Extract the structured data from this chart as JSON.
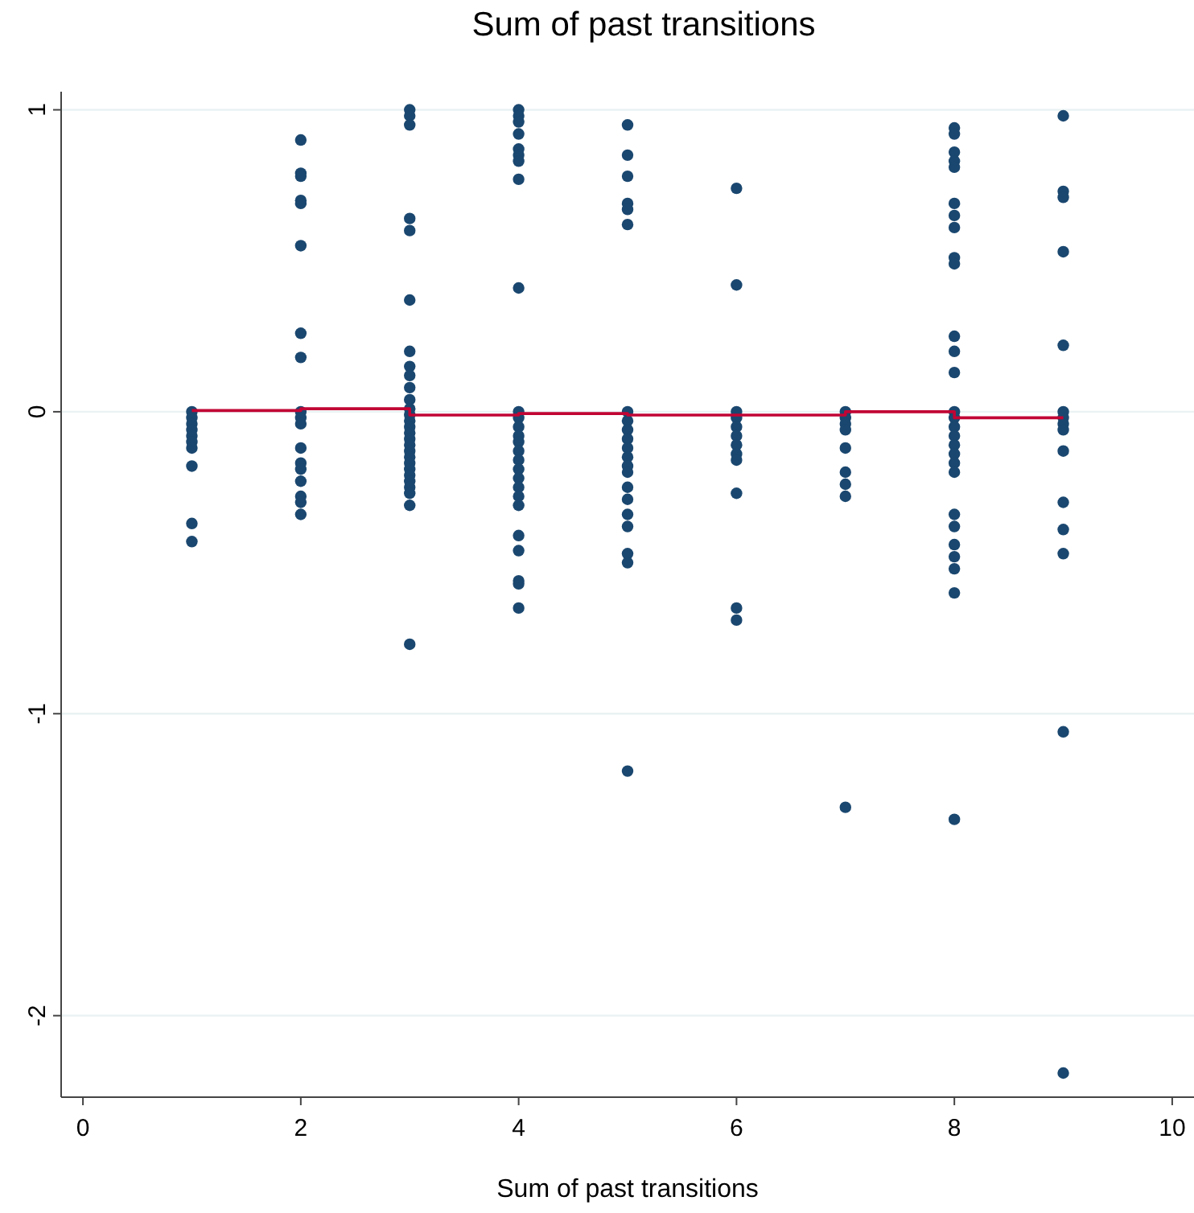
{
  "chart_data": {
    "type": "scatter",
    "title": "Sum of past transitions",
    "xlabel": "Sum of past transitions",
    "xlim": [
      -0.2,
      10.2
    ],
    "xticks": [
      0,
      2,
      4,
      6,
      8,
      10
    ],
    "ylim": [
      -2.27,
      1.06
    ],
    "yticks": [
      -2,
      -1,
      0,
      1
    ],
    "grid": "y",
    "marker": "circle",
    "series": [
      {
        "color": "#1a476f",
        "x": [
          1,
          1,
          1,
          1,
          1,
          1,
          1,
          1,
          1,
          1,
          2,
          2,
          2,
          2,
          2,
          2,
          2,
          2,
          2,
          2,
          2,
          2,
          2,
          2,
          2,
          2,
          2,
          2,
          3,
          3,
          3,
          3,
          3,
          3,
          3,
          3,
          3,
          3,
          3,
          3,
          3,
          3,
          3,
          3,
          3,
          3,
          3,
          3,
          3,
          3,
          3,
          3,
          3,
          3,
          3,
          3,
          4,
          4,
          4,
          4,
          4,
          4,
          4,
          4,
          4,
          4,
          4,
          4,
          4,
          4,
          4,
          4,
          4,
          4,
          4,
          4,
          4,
          4,
          4,
          4,
          4,
          4,
          5,
          5,
          5,
          5,
          5,
          5,
          5,
          5,
          5,
          5,
          5,
          5,
          5,
          5,
          5,
          5,
          5,
          5,
          5,
          5,
          5,
          6,
          6,
          6,
          6,
          6,
          6,
          6,
          6,
          6,
          6,
          6,
          6,
          7,
          7,
          7,
          7,
          7,
          7,
          7,
          7,
          7,
          8,
          8,
          8,
          8,
          8,
          8,
          8,
          8,
          8,
          8,
          8,
          8,
          8,
          8,
          8,
          8,
          8,
          8,
          8,
          8,
          8,
          8,
          8,
          8,
          8,
          8,
          8,
          8,
          9,
          9,
          9,
          9,
          9,
          9,
          9,
          9,
          9,
          9,
          9,
          9,
          9,
          9,
          9
        ],
        "values": [
          0,
          -0.02,
          -0.04,
          -0.06,
          -0.08,
          -0.1,
          -0.12,
          -0.18,
          -0.37,
          -0.43,
          0.9,
          0.79,
          0.78,
          0.7,
          0.69,
          0.55,
          0.26,
          0.18,
          0,
          -0.02,
          -0.04,
          -0.12,
          -0.17,
          -0.19,
          -0.23,
          -0.28,
          -0.3,
          -0.34,
          1,
          0.98,
          0.95,
          0.64,
          0.6,
          0.37,
          0.2,
          0.15,
          0.12,
          0.08,
          0.04,
          0.01,
          -0.01,
          -0.03,
          -0.05,
          -0.07,
          -0.09,
          -0.11,
          -0.13,
          -0.15,
          -0.17,
          -0.19,
          -0.21,
          -0.23,
          -0.25,
          -0.27,
          -0.31,
          -0.77,
          1,
          0.98,
          0.96,
          0.92,
          0.87,
          0.85,
          0.83,
          0.77,
          0.41,
          0,
          -0.02,
          -0.05,
          -0.08,
          -0.1,
          -0.13,
          -0.16,
          -0.19,
          -0.22,
          -0.25,
          -0.28,
          -0.31,
          -0.41,
          -0.46,
          -0.56,
          -0.57,
          -0.65,
          0.95,
          0.85,
          0.78,
          0.69,
          0.67,
          0.62,
          0,
          -0.03,
          -0.06,
          -0.09,
          -0.12,
          -0.15,
          -0.18,
          -0.2,
          -0.25,
          -0.29,
          -0.34,
          -0.38,
          -0.47,
          -0.5,
          -1.19,
          0.74,
          0.42,
          0,
          -0.02,
          -0.05,
          -0.08,
          -0.11,
          -0.14,
          -0.16,
          -0.27,
          -0.65,
          -0.69,
          0,
          -0.02,
          -0.04,
          -0.06,
          -0.12,
          -0.2,
          -0.24,
          -0.28,
          -1.31,
          0.94,
          0.92,
          0.86,
          0.83,
          0.81,
          0.69,
          0.65,
          0.61,
          0.51,
          0.49,
          0.25,
          0.2,
          0.13,
          0,
          -0.02,
          -0.05,
          -0.08,
          -0.11,
          -0.14,
          -0.17,
          -0.2,
          -0.34,
          -0.38,
          -0.44,
          -0.48,
          -0.52,
          -0.6,
          -1.35,
          0.98,
          0.73,
          0.71,
          0.53,
          0.22,
          0,
          -0.02,
          -0.04,
          -0.06,
          -0.13,
          -0.3,
          -0.39,
          -0.47,
          -1.06,
          -2.19
        ]
      },
      {
        "type": "step",
        "marker": "none",
        "color": "#c10534",
        "x": [
          1,
          2,
          3,
          4,
          5,
          6,
          7,
          8,
          9
        ],
        "values": [
          0.004,
          0.01,
          -0.011,
          -0.006,
          -0.011,
          -0.011,
          0,
          -0.02,
          -0.02
        ]
      }
    ]
  }
}
